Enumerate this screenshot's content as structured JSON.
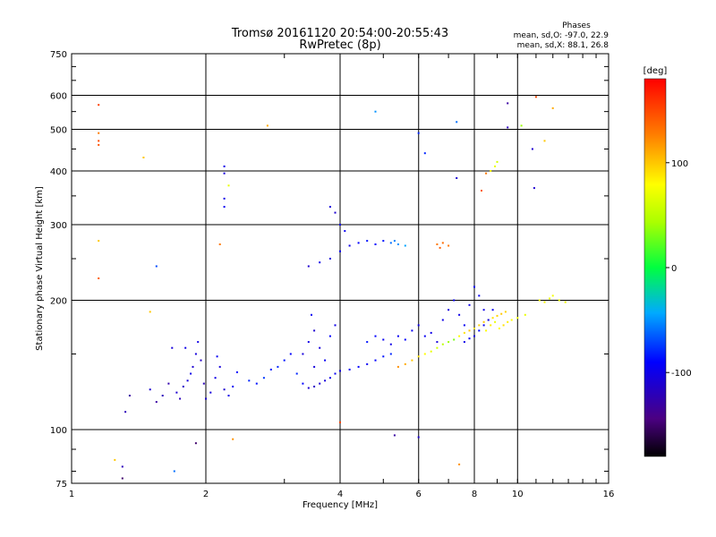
{
  "chart_data": {
    "type": "scatter",
    "title": "Tromsø 20161120 20:54:00-20:55:43",
    "subtitle": "RwPretec (8p)",
    "legend": {
      "heading": "Phases",
      "line_o": "mean, sd,O: -97.0, 22.9",
      "line_x": "mean, sd,X:  88.1, 26.8"
    },
    "xlabel": "Frequency [MHz]",
    "ylabel": "Stationary phase Virtual Height [km]",
    "x_scale": "log",
    "y_scale": "log",
    "xlim": [
      1,
      16
    ],
    "ylim": [
      75,
      750
    ],
    "x_ticks": [
      1,
      2,
      4,
      6,
      8,
      10,
      16
    ],
    "x_tick_labels": [
      "1",
      "2",
      "4",
      "6",
      "8",
      "10",
      "16"
    ],
    "y_ticks": [
      75,
      100,
      200,
      300,
      400,
      500,
      600,
      750
    ],
    "y_tick_labels": [
      "75",
      "100",
      "200",
      "300",
      "400",
      "500",
      "600",
      "750"
    ],
    "grid": true,
    "colorbar": {
      "label": "[deg]",
      "ticks": [
        100,
        0,
        -100
      ],
      "tick_labels": [
        "100",
        "0",
        "-100"
      ],
      "range": [
        -180,
        180
      ]
    },
    "series": [
      {
        "points": [
          [
            1.72,
            122,
            -110
          ],
          [
            1.75,
            118,
            -120
          ],
          [
            1.78,
            126,
            -115
          ],
          [
            1.82,
            130,
            -105
          ],
          [
            1.85,
            135,
            -100
          ],
          [
            1.87,
            140,
            -110
          ],
          [
            1.9,
            150,
            -105
          ],
          [
            1.92,
            160,
            -100
          ],
          [
            1.95,
            145,
            -115
          ],
          [
            1.98,
            128,
            -120
          ],
          [
            2.0,
            118,
            -110
          ],
          [
            2.05,
            122,
            -105
          ],
          [
            2.1,
            132,
            -100
          ],
          [
            2.12,
            148,
            -95
          ],
          [
            2.15,
            140,
            -105
          ],
          [
            2.2,
            124,
            -110
          ],
          [
            2.25,
            120,
            -100
          ],
          [
            2.3,
            126,
            -95
          ],
          [
            2.35,
            136,
            -90
          ],
          [
            1.65,
            128,
            -125
          ],
          [
            1.6,
            120,
            -120
          ],
          [
            1.55,
            116,
            -130
          ],
          [
            1.5,
            124,
            -110
          ],
          [
            1.68,
            155,
            -105
          ],
          [
            1.8,
            155,
            -100
          ],
          [
            2.5,
            130,
            -80
          ],
          [
            2.6,
            128,
            -85
          ],
          [
            2.7,
            132,
            -75
          ],
          [
            2.8,
            138,
            -85
          ],
          [
            2.9,
            140,
            -80
          ],
          [
            3.0,
            145,
            -85
          ],
          [
            3.1,
            150,
            -90
          ],
          [
            3.2,
            135,
            -80
          ],
          [
            3.3,
            128,
            -90
          ],
          [
            3.4,
            125,
            -110
          ],
          [
            3.5,
            126,
            -115
          ],
          [
            3.6,
            128,
            -110
          ],
          [
            3.7,
            130,
            -105
          ],
          [
            3.8,
            132,
            -100
          ],
          [
            3.9,
            135,
            -95
          ],
          [
            4.0,
            137,
            -100
          ],
          [
            4.2,
            138,
            -95
          ],
          [
            4.4,
            140,
            -90
          ],
          [
            4.6,
            142,
            -95
          ],
          [
            4.8,
            145,
            -90
          ],
          [
            5.0,
            148,
            -85
          ],
          [
            5.2,
            150,
            -80
          ],
          [
            3.3,
            150,
            -105
          ],
          [
            3.4,
            160,
            -100
          ],
          [
            3.5,
            170,
            -110
          ],
          [
            3.6,
            155,
            -105
          ],
          [
            3.7,
            145,
            -95
          ],
          [
            3.8,
            165,
            -90
          ],
          [
            3.9,
            175,
            -100
          ],
          [
            3.5,
            140,
            -105
          ],
          [
            3.45,
            185,
            -95
          ],
          [
            4.6,
            160,
            -85
          ],
          [
            4.8,
            165,
            -90
          ],
          [
            5.0,
            162,
            -95
          ],
          [
            5.2,
            158,
            -100
          ],
          [
            5.4,
            165,
            -95
          ],
          [
            5.6,
            162,
            -90
          ],
          [
            5.8,
            170,
            -95
          ],
          [
            6.0,
            175,
            -100
          ],
          [
            6.2,
            165,
            -95
          ],
          [
            6.4,
            168,
            -100
          ],
          [
            6.6,
            160,
            -105
          ],
          [
            5.4,
            140,
            120
          ],
          [
            5.6,
            142,
            110
          ],
          [
            5.8,
            145,
            100
          ],
          [
            6.0,
            148,
            90
          ],
          [
            6.2,
            150,
            80
          ],
          [
            6.4,
            152,
            70
          ],
          [
            6.6,
            155,
            60
          ],
          [
            6.8,
            158,
            50
          ],
          [
            7.0,
            160,
            40
          ],
          [
            7.2,
            162,
            30
          ],
          [
            7.4,
            165,
            80
          ],
          [
            7.6,
            168,
            90
          ],
          [
            7.8,
            170,
            100
          ],
          [
            8.0,
            172,
            90
          ],
          [
            8.2,
            175,
            95
          ],
          [
            8.4,
            178,
            100
          ],
          [
            8.6,
            180,
            95
          ],
          [
            8.8,
            182,
            90
          ],
          [
            9.0,
            184,
            95
          ],
          [
            9.2,
            186,
            100
          ],
          [
            9.4,
            188,
            95
          ],
          [
            6.8,
            180,
            -100
          ],
          [
            7.0,
            190,
            -105
          ],
          [
            7.2,
            200,
            -95
          ],
          [
            7.4,
            185,
            -100
          ],
          [
            7.6,
            175,
            -95
          ],
          [
            7.8,
            195,
            -100
          ],
          [
            8.0,
            215,
            -90
          ],
          [
            8.2,
            205,
            -95
          ],
          [
            8.4,
            190,
            -100
          ],
          [
            7.6,
            160,
            -100
          ],
          [
            7.8,
            163,
            -95
          ],
          [
            8.0,
            165,
            -100
          ],
          [
            8.2,
            170,
            -90
          ],
          [
            8.4,
            175,
            -95
          ],
          [
            8.6,
            180,
            -100
          ],
          [
            8.8,
            190,
            -95
          ],
          [
            8.5,
            170,
            80
          ],
          [
            8.7,
            175,
            85
          ],
          [
            8.9,
            178,
            70
          ],
          [
            9.1,
            172,
            80
          ],
          [
            9.3,
            175,
            90
          ],
          [
            9.5,
            178,
            85
          ],
          [
            9.7,
            180,
            80
          ],
          [
            10.0,
            182,
            75
          ],
          [
            10.4,
            185,
            70
          ],
          [
            11.2,
            200,
            75
          ],
          [
            11.5,
            198,
            80
          ],
          [
            11.8,
            202,
            70
          ],
          [
            12.0,
            205,
            75
          ],
          [
            12.4,
            200,
            70
          ],
          [
            12.8,
            198,
            75
          ],
          [
            3.4,
            240,
            -110
          ],
          [
            3.6,
            245,
            -100
          ],
          [
            3.8,
            250,
            -105
          ],
          [
            4.0,
            260,
            -95
          ],
          [
            4.2,
            268,
            -100
          ],
          [
            4.4,
            272,
            -90
          ],
          [
            4.6,
            275,
            -85
          ],
          [
            4.8,
            270,
            -90
          ],
          [
            5.0,
            275,
            -85
          ],
          [
            5.2,
            272,
            -60
          ],
          [
            5.4,
            270,
            -50
          ],
          [
            5.6,
            268,
            -45
          ],
          [
            5.3,
            275,
            -55
          ],
          [
            6.6,
            270,
            130
          ],
          [
            6.8,
            272,
            135
          ],
          [
            7.0,
            268,
            130
          ],
          [
            6.7,
            265,
            140
          ],
          [
            3.8,
            330,
            -105
          ],
          [
            3.9,
            320,
            -110
          ],
          [
            4.0,
            300,
            -100
          ],
          [
            4.1,
            290,
            -95
          ],
          [
            2.2,
            410,
            -100
          ],
          [
            2.2,
            395,
            -105
          ],
          [
            2.2,
            345,
            -100
          ],
          [
            2.2,
            330,
            -95
          ],
          [
            2.25,
            370,
            70
          ],
          [
            1.15,
            490,
            130
          ],
          [
            1.15,
            470,
            150
          ],
          [
            1.15,
            460,
            145
          ],
          [
            1.15,
            570,
            155
          ],
          [
            1.15,
            275,
            100
          ],
          [
            1.15,
            225,
            140
          ],
          [
            1.32,
            110,
            -120
          ],
          [
            1.35,
            120,
            -130
          ],
          [
            1.45,
            430,
            100
          ],
          [
            1.5,
            188,
            100
          ],
          [
            1.55,
            240,
            -70
          ],
          [
            1.9,
            93,
            -150
          ],
          [
            2.3,
            95,
            120
          ],
          [
            2.15,
            270,
            130
          ],
          [
            8.7,
            400,
            80
          ],
          [
            8.9,
            410,
            70
          ],
          [
            8.5,
            395,
            130
          ],
          [
            9.0,
            420,
            60
          ],
          [
            8.3,
            360,
            140
          ],
          [
            9.5,
            505,
            -120
          ],
          [
            9.5,
            575,
            -130
          ],
          [
            10.8,
            450,
            -110
          ],
          [
            10.9,
            365,
            -110
          ],
          [
            7.3,
            520,
            -60
          ],
          [
            6.0,
            490,
            -80
          ],
          [
            7.3,
            385,
            -110
          ],
          [
            6.2,
            440,
            -80
          ],
          [
            4.8,
            550,
            -50
          ],
          [
            2.75,
            510,
            110
          ],
          [
            10.2,
            510,
            40
          ],
          [
            11.0,
            595,
            150
          ],
          [
            11.5,
            470,
            100
          ],
          [
            12.0,
            560,
            110
          ],
          [
            5.3,
            97,
            -130
          ],
          [
            6.0,
            96,
            -110
          ],
          [
            7.4,
            83,
            120
          ],
          [
            4.0,
            104,
            150
          ],
          [
            1.3,
            77,
            -150
          ],
          [
            1.3,
            82,
            -120
          ],
          [
            1.7,
            80,
            -60
          ],
          [
            1.25,
            85,
            100
          ]
        ]
      }
    ]
  }
}
